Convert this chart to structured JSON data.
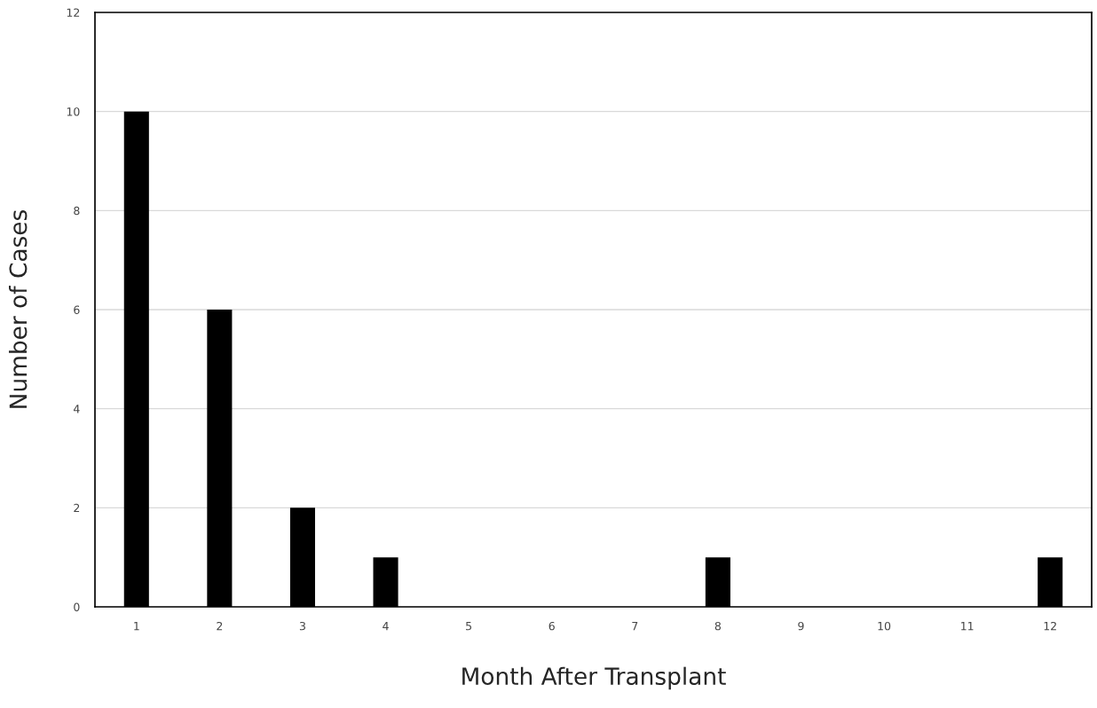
{
  "chart_data": {
    "type": "bar",
    "xlabel": "Month After Transplant",
    "ylabel": "Number of Cases",
    "categories": [
      "1",
      "2",
      "3",
      "4",
      "5",
      "6",
      "7",
      "8",
      "9",
      "10",
      "11",
      "12"
    ],
    "values": [
      10,
      6,
      2,
      1,
      0,
      0,
      0,
      1,
      0,
      0,
      0,
      1
    ],
    "color": "#000000",
    "ylim": [
      0,
      12
    ],
    "yticks": [
      0,
      2,
      4,
      6,
      8,
      10,
      12
    ],
    "grid": "y",
    "legend": false
  }
}
